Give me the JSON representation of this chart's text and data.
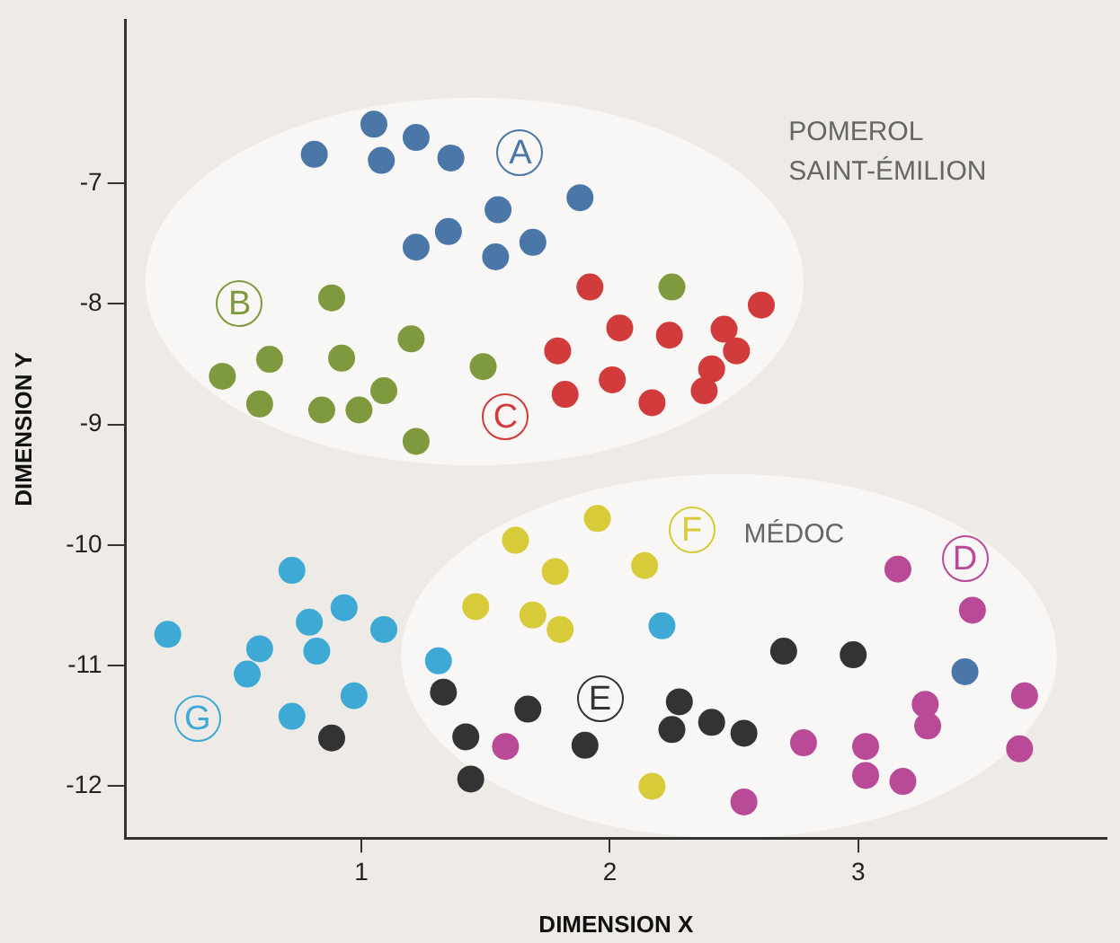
{
  "chart_data": {
    "type": "scatter",
    "xlabel": "DIMENSION X",
    "ylabel": "DIMENSION Y",
    "xlim": [
      0.05,
      4.0
    ],
    "ylim": [
      -12.43,
      -5.65
    ],
    "xticks": [
      1,
      2,
      3
    ],
    "yticks": [
      -7,
      -8,
      -9,
      -10,
      -11,
      -12
    ],
    "grid": false,
    "legend": false,
    "marker": "circle",
    "annotations": [
      "POMEROL\nSAINT-ÉMILION",
      "MÉDOC"
    ],
    "series": [
      {
        "name": "A",
        "color": "#4a76a8",
        "x": [
          0.81,
          1.05,
          1.22,
          1.08,
          1.36,
          1.88,
          1.55,
          1.35,
          1.22,
          1.69,
          1.54,
          3.43
        ],
        "values": [
          -6.76,
          -6.51,
          -6.62,
          -6.81,
          -6.79,
          -7.12,
          -7.22,
          -7.4,
          -7.53,
          -7.49,
          -7.61,
          -11.05
        ]
      },
      {
        "name": "B",
        "color": "#7f9a3e",
        "x": [
          0.88,
          2.25,
          1.2,
          0.63,
          0.92,
          0.44,
          1.49,
          1.09,
          0.59,
          0.84,
          0.99,
          1.22
        ],
        "values": [
          -7.95,
          -7.86,
          -8.29,
          -8.46,
          -8.45,
          -8.6,
          -8.52,
          -8.72,
          -8.83,
          -8.88,
          -8.88,
          -9.14
        ]
      },
      {
        "name": "C",
        "color": "#d13b3b",
        "x": [
          1.92,
          2.61,
          2.04,
          2.24,
          2.46,
          2.51,
          1.79,
          2.41,
          2.01,
          1.82,
          2.17,
          2.38
        ],
        "values": [
          -7.86,
          -8.01,
          -8.2,
          -8.26,
          -8.21,
          -8.39,
          -8.39,
          -8.54,
          -8.63,
          -8.75,
          -8.82,
          -8.72
        ]
      },
      {
        "name": "D",
        "color": "#b84a98",
        "x": [
          1.58,
          3.16,
          3.46,
          3.27,
          3.28,
          3.67,
          3.65,
          2.78,
          3.03,
          3.03,
          3.18,
          2.54
        ],
        "values": [
          -11.67,
          -10.2,
          -10.54,
          -11.32,
          -11.5,
          -11.25,
          -11.69,
          -11.64,
          -11.67,
          -11.91,
          -11.96,
          -12.13
        ]
      },
      {
        "name": "E",
        "color": "#333333",
        "x": [
          1.33,
          1.67,
          1.42,
          1.9,
          1.44,
          0.88,
          2.7,
          2.98,
          2.28,
          2.25,
          2.41,
          2.54
        ],
        "values": [
          -11.22,
          -11.36,
          -11.59,
          -11.66,
          -11.94,
          -11.6,
          -10.88,
          -10.91,
          -11.3,
          -11.53,
          -11.47,
          -11.56
        ]
      },
      {
        "name": "F",
        "color": "#d8cb3a",
        "x": [
          1.62,
          1.95,
          1.78,
          1.46,
          1.69,
          1.8,
          2.14,
          2.17
        ],
        "values": [
          -9.96,
          -9.78,
          -10.22,
          -10.51,
          -10.58,
          -10.7,
          -10.17,
          -12.0
        ]
      },
      {
        "name": "G",
        "color": "#3fa9d6",
        "x": [
          0.22,
          0.72,
          0.93,
          0.79,
          0.59,
          0.82,
          1.09,
          0.54,
          0.97,
          0.72,
          1.31,
          2.21
        ],
        "values": [
          -10.74,
          -10.21,
          -10.52,
          -10.64,
          -10.86,
          -10.88,
          -10.7,
          -11.07,
          -11.25,
          -11.42,
          -10.96,
          -10.67
        ]
      }
    ]
  }
}
